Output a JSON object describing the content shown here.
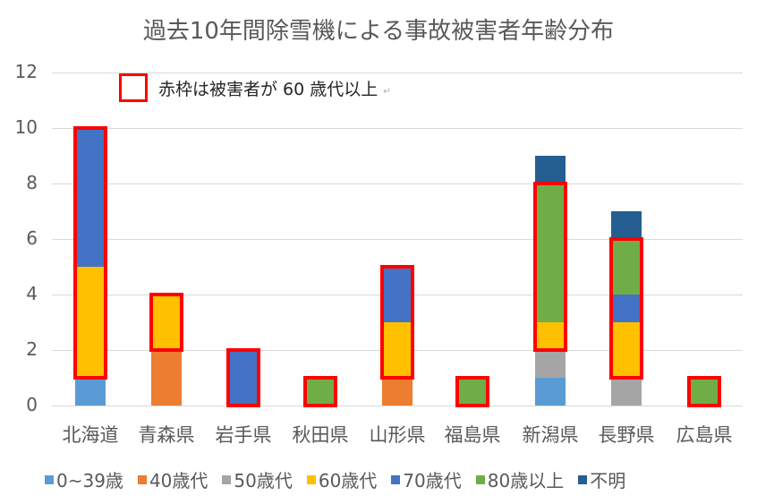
{
  "title": "過去10年間除雪機による事故被害者年齢分布",
  "note": {
    "text": "赤枠は被害者が 60 歳代以上",
    "mark": "↵"
  },
  "chart_data": {
    "type": "bar",
    "stacked": true,
    "title": "過去10年間除雪機による事故被害者年齢分布",
    "xlabel": "",
    "ylabel": "",
    "ylim": [
      0,
      12
    ],
    "yticks": [
      "0",
      "2",
      "4",
      "6",
      "8",
      "10",
      "12"
    ],
    "grid": true,
    "legend_position": "bottom",
    "categories": [
      "北海道",
      "青森県",
      "岩手県",
      "秋田県",
      "山形県",
      "福島県",
      "新潟県",
      "長野県",
      "広島県"
    ],
    "series": [
      {
        "name": "0~39歳",
        "color": "#5b9bd5",
        "values": [
          1,
          0,
          0,
          0,
          0,
          0,
          1,
          0,
          0
        ]
      },
      {
        "name": "40歳代",
        "color": "#ed7d31",
        "values": [
          0,
          2,
          0,
          0,
          1,
          0,
          0,
          0,
          0
        ]
      },
      {
        "name": "50歳代",
        "color": "#a5a5a5",
        "values": [
          0,
          0,
          0,
          0,
          0,
          0,
          1,
          1,
          0
        ]
      },
      {
        "name": "60歳代",
        "color": "#ffc000",
        "values": [
          4,
          2,
          0,
          0,
          2,
          0,
          1,
          2,
          0
        ]
      },
      {
        "name": "70歳代",
        "color": "#4472c4",
        "values": [
          5,
          0,
          2,
          0,
          2,
          0,
          0,
          1,
          0
        ]
      },
      {
        "name": "80歳以上",
        "color": "#70ad47",
        "values": [
          0,
          0,
          0,
          1,
          0,
          1,
          5,
          2,
          1
        ]
      },
      {
        "name": "不明",
        "color": "#255e91",
        "values": [
          0,
          0,
          0,
          0,
          0,
          0,
          1,
          1,
          0
        ]
      }
    ],
    "annotations": [
      "赤枠は被害者が 60 歳代以上 (red boxes outline 60歳代, 70歳代 and 80歳以上 segments)"
    ],
    "highlight_color": "#ff0000"
  },
  "legend": [
    {
      "label": "0~39歳",
      "color": "#5b9bd5"
    },
    {
      "label": "40歳代",
      "color": "#ed7d31"
    },
    {
      "label": "50歳代",
      "color": "#a5a5a5"
    },
    {
      "label": "60歳代",
      "color": "#ffc000"
    },
    {
      "label": "70歳代",
      "color": "#4472c4"
    },
    {
      "label": "80歳以上",
      "color": "#70ad47"
    },
    {
      "label": "不明",
      "color": "#255e91"
    }
  ]
}
